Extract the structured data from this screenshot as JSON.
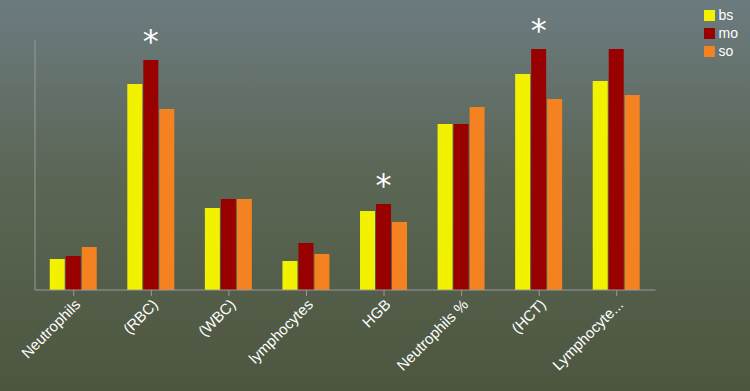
{
  "chart_data": {
    "type": "bar",
    "categories": [
      "Neutrophils",
      "(RBC)",
      "(WBC)",
      "lymphocytes",
      "HGB",
      "Neutrophils %",
      "(HCT)",
      "Lymphocyte..."
    ],
    "series": [
      {
        "name": "bs",
        "color": "#f2f200",
        "values": [
          31,
          206,
          82,
          29,
          79,
          166,
          216,
          209
        ]
      },
      {
        "name": "mo",
        "color": "#990000",
        "values": [
          34,
          230,
          91,
          47,
          86,
          166,
          241,
          241
        ]
      },
      {
        "name": "so",
        "color": "#f58220",
        "values": [
          43,
          181,
          91,
          36,
          68,
          183,
          191,
          195
        ]
      }
    ],
    "ylim": [
      0,
      250
    ],
    "tick_labels": "x",
    "grid": false,
    "legend": "top-right",
    "annotations": [
      {
        "category": "(RBC)",
        "series": "mo",
        "text": "*"
      },
      {
        "category": "HGB",
        "series": "mo",
        "text": "*"
      },
      {
        "category": "(HCT)",
        "series": "mo",
        "text": "*"
      }
    ]
  }
}
